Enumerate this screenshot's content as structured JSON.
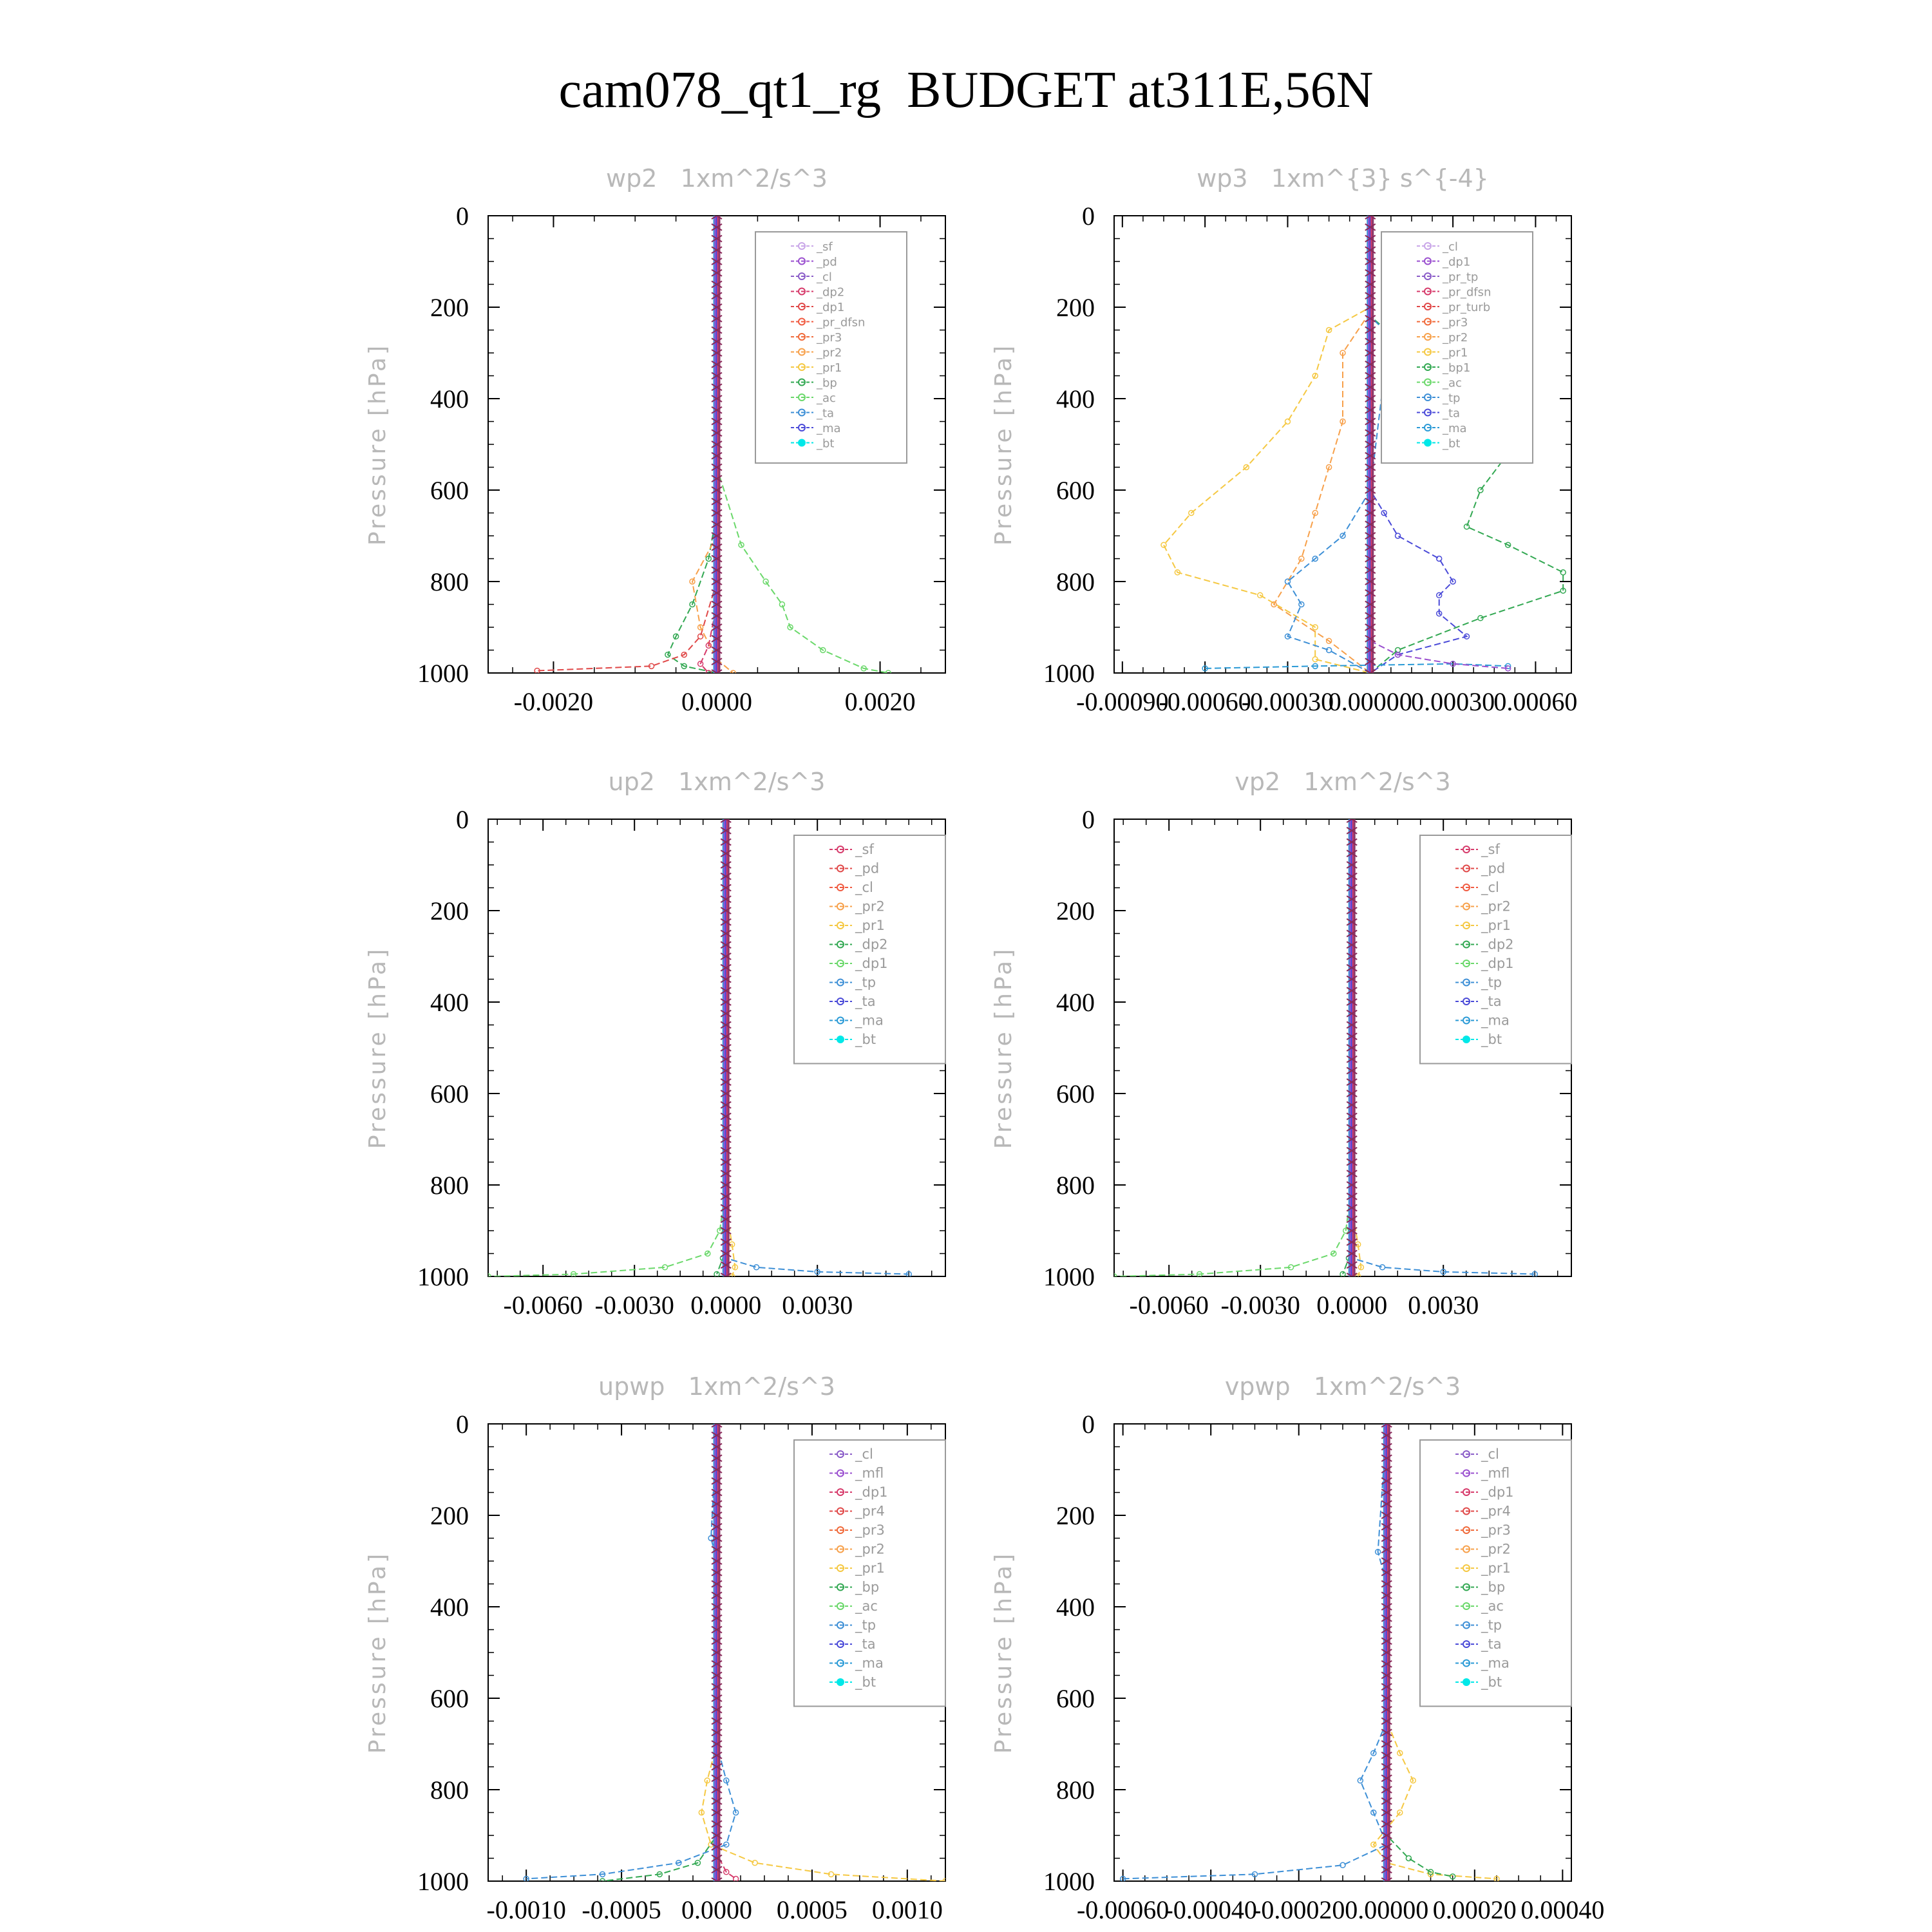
{
  "page_title": "cam078_qt1_rg  BUDGET at311E,56N",
  "chart_data": [
    {
      "type": "line",
      "title": "wp2   1xm^2/s^3",
      "ylabel": "Pressure [hPa]",
      "ylim": [
        0,
        1000
      ],
      "yticks": [
        "0",
        "200",
        "400",
        "600",
        "800",
        "1000"
      ],
      "xlim": [
        -0.0028,
        0.0028
      ],
      "xticks": [
        -0.002,
        0.0,
        0.002
      ],
      "xticklabels": [
        "-0.0020",
        "0.0000",
        "0.0020"
      ],
      "legend": [
        "_sf",
        "_pd",
        "_cl",
        "_dp2",
        "_dp1",
        "_pr_dfsn",
        "_pr3",
        "_pr2",
        "_pr1",
        "_bp",
        "_ac",
        "_ta",
        "_ma",
        "_bt"
      ],
      "series_colors": [
        "#c9a6e8",
        "#9a4fcf",
        "#8a5cc8",
        "#d63a6a",
        "#e04848",
        "#f05a40",
        "#f06a3a",
        "#f7a04a",
        "#f5c842",
        "#32a852",
        "#6ad86a",
        "#3d8fd6",
        "#4a4ad8",
        "#00e8e8"
      ],
      "series": [
        {
          "name": "_bp",
          "x": [
            0,
            0,
            -0.0001,
            -0.0003,
            -0.0005,
            -0.0006,
            -0.0004,
            0
          ],
          "y": [
            0,
            650,
            750,
            850,
            920,
            960,
            985,
            1000
          ]
        },
        {
          "name": "_ac",
          "x": [
            0,
            0,
            0.0003,
            0.0006,
            0.0008,
            0.0009,
            0.0013,
            0.0018,
            0.0021
          ],
          "y": [
            0,
            550,
            720,
            800,
            850,
            900,
            950,
            990,
            1000
          ]
        },
        {
          "name": "_dp1",
          "x": [
            0,
            0,
            -0.0002,
            -0.0004,
            -0.0008,
            -0.0022
          ],
          "y": [
            0,
            800,
            920,
            960,
            985,
            995
          ]
        },
        {
          "name": "_pr2",
          "x": [
            0,
            0,
            -0.0003,
            -0.0002,
            0,
            0.0002
          ],
          "y": [
            0,
            700,
            800,
            900,
            970,
            1000
          ]
        },
        {
          "name": "_dp2",
          "x": [
            0,
            0,
            -0.0001,
            -0.0002,
            -0.0001
          ],
          "y": [
            0,
            850,
            940,
            980,
            1000
          ]
        }
      ]
    },
    {
      "type": "line",
      "title": "wp3   1xm^{3} s^{-4}",
      "ylabel": "Pressure [hPa]",
      "ylim": [
        0,
        1000
      ],
      "yticks": [
        "0",
        "200",
        "400",
        "600",
        "800",
        "1000"
      ],
      "xlim": [
        -0.00093,
        0.00073
      ],
      "xticks": [
        -0.0009,
        -0.0006,
        -0.0003,
        0.0,
        0.0003,
        0.0006
      ],
      "xticklabels": [
        "-0.00090",
        "-0.00060",
        "-0.00030",
        "0.00000",
        "0.00030",
        "0.00060"
      ],
      "legend": [
        "_cl",
        "_dp1",
        "_pr_tp",
        "_pr_dfsn",
        "_pr_turb",
        "_pr3",
        "_pr2",
        "_pr1",
        "_bp1",
        "_ac",
        "_tp",
        "_ta",
        "_ma",
        "_bt"
      ],
      "series_colors": [
        "#c9a6e8",
        "#9a4fcf",
        "#8a5cc8",
        "#d63a6a",
        "#e04848",
        "#f06a3a",
        "#f7a04a",
        "#f5c842",
        "#32a852",
        "#6ad86a",
        "#3d8fd6",
        "#4a4ad8",
        "#2a9ad6",
        "#00e8e8"
      ],
      "series": [
        {
          "name": "_bp1",
          "x": [
            0,
            0,
            0.0001,
            0.0003,
            0.00045,
            0.0005,
            0.0004,
            0.00035,
            0.0005,
            0.0007,
            0.0007,
            0.0004,
            0.0001,
            0
          ],
          "y": [
            0,
            220,
            270,
            350,
            450,
            520,
            600,
            680,
            720,
            780,
            820,
            880,
            950,
            1000
          ]
        },
        {
          "name": "_pr1",
          "x": [
            0,
            0,
            -0.00015,
            -0.0002,
            -0.0003,
            -0.00045,
            -0.00065,
            -0.00075,
            -0.0007,
            -0.0004,
            -0.0002,
            -0.0002,
            0
          ],
          "y": [
            0,
            200,
            250,
            350,
            450,
            550,
            650,
            720,
            780,
            830,
            900,
            970,
            1000
          ]
        },
        {
          "name": "_pr2",
          "x": [
            0,
            0,
            -0.0001,
            -0.0001,
            -0.00015,
            -0.0002,
            -0.00025,
            -0.00035,
            -0.00015,
            0
          ],
          "y": [
            0,
            210,
            300,
            450,
            550,
            650,
            750,
            850,
            930,
            1000
          ]
        },
        {
          "name": "_ta",
          "x": [
            0,
            0,
            5e-05,
            0.0001,
            0.00025,
            0.0003,
            0.00025,
            0.00025,
            0.00035,
            0.0001,
            0
          ],
          "y": [
            0,
            600,
            650,
            700,
            750,
            800,
            830,
            870,
            920,
            960,
            1000
          ]
        },
        {
          "name": "_tp",
          "x": [
            0,
            0,
            0.0001,
            5e-05,
            0,
            -0.0001,
            -0.0002,
            -0.0003,
            -0.00025,
            -0.0003,
            -0.00015,
            0
          ],
          "y": [
            0,
            220,
            280,
            350,
            600,
            700,
            750,
            800,
            850,
            920,
            950,
            1000
          ]
        },
        {
          "name": "_ma",
          "x": [
            -0.0006,
            -0.0002,
            0.0003,
            0.0005
          ],
          "y": [
            990,
            985,
            980,
            985
          ]
        },
        {
          "name": "_dp1",
          "x": [
            0,
            0,
            0.0001,
            0.0003,
            0.0005
          ],
          "y": [
            0,
            930,
            960,
            980,
            990
          ]
        }
      ]
    },
    {
      "type": "line",
      "title": "up2   1xm^2/s^3",
      "ylabel": "Pressure [hPa]",
      "ylim": [
        0,
        1000
      ],
      "yticks": [
        "0",
        "200",
        "400",
        "600",
        "800",
        "1000"
      ],
      "xlim": [
        -0.0078,
        0.0072
      ],
      "xticks": [
        -0.006,
        -0.003,
        0.0,
        0.003
      ],
      "xticklabels": [
        "-0.0060",
        "-0.0030",
        "0.0000",
        "0.0030"
      ],
      "legend": [
        "_sf",
        "_pd",
        "_cl",
        "_pr2",
        "_pr1",
        "_dp2",
        "_dp1",
        "_tp",
        "_ta",
        "_ma",
        "_bt"
      ],
      "series_colors": [
        "#d63a6a",
        "#e04848",
        "#f05a40",
        "#f7a04a",
        "#f5c842",
        "#32a852",
        "#6ad86a",
        "#3d8fd6",
        "#4a4ad8",
        "#2a9ad6",
        "#00e8e8"
      ],
      "series": [
        {
          "name": "_dp1",
          "x": [
            0,
            0,
            -0.0002,
            -0.0006,
            -0.002,
            -0.005,
            -0.0078
          ],
          "y": [
            0,
            800,
            900,
            950,
            980,
            995,
            1000
          ]
        },
        {
          "name": "_tp",
          "x": [
            0,
            0,
            0.001,
            0.003,
            0.006
          ],
          "y": [
            0,
            960,
            980,
            990,
            995
          ]
        },
        {
          "name": "_pr1",
          "x": [
            0,
            0,
            0.0002,
            0.0003,
            0.0002
          ],
          "y": [
            0,
            850,
            930,
            980,
            1000
          ]
        },
        {
          "name": "_dp2",
          "x": [
            0,
            0,
            -0.0001,
            -0.0003
          ],
          "y": [
            0,
            900,
            960,
            995
          ]
        }
      ]
    },
    {
      "type": "line",
      "title": "vp2   1xm^2/s^3",
      "ylabel": "Pressure [hPa]",
      "ylim": [
        0,
        1000
      ],
      "yticks": [
        "0",
        "200",
        "400",
        "600",
        "800",
        "1000"
      ],
      "xlim": [
        -0.0078,
        0.0072
      ],
      "xticks": [
        -0.006,
        -0.003,
        0.0,
        0.003
      ],
      "xticklabels": [
        "-0.0060",
        "-0.0030",
        "0.0000",
        "0.0030"
      ],
      "legend": [
        "_sf",
        "_pd",
        "_cl",
        "_pr2",
        "_pr1",
        "_dp2",
        "_dp1",
        "_tp",
        "_ta",
        "_ma",
        "_bt"
      ],
      "series_colors": [
        "#d63a6a",
        "#e04848",
        "#f05a40",
        "#f7a04a",
        "#f5c842",
        "#32a852",
        "#6ad86a",
        "#3d8fd6",
        "#4a4ad8",
        "#2a9ad6",
        "#00e8e8"
      ],
      "series": [
        {
          "name": "_dp1",
          "x": [
            0,
            0,
            -0.0002,
            -0.0006,
            -0.002,
            -0.005,
            -0.0078
          ],
          "y": [
            0,
            800,
            900,
            950,
            980,
            995,
            1000
          ]
        },
        {
          "name": "_tp",
          "x": [
            0,
            0,
            0.001,
            0.003,
            0.006
          ],
          "y": [
            0,
            960,
            980,
            990,
            995
          ]
        },
        {
          "name": "_pr1",
          "x": [
            0,
            0,
            0.0002,
            0.0003,
            0.0002
          ],
          "y": [
            0,
            850,
            930,
            980,
            1000
          ]
        },
        {
          "name": "_dp2",
          "x": [
            0,
            0,
            -0.0001,
            -0.0003
          ],
          "y": [
            0,
            900,
            960,
            995
          ]
        }
      ]
    },
    {
      "type": "line",
      "title": "upwp   1xm^2/s^3",
      "ylabel": "Pressure [hPa]",
      "ylim": [
        0,
        1000
      ],
      "yticks": [
        "0",
        "200",
        "400",
        "600",
        "800",
        "1000"
      ],
      "xlim": [
        -0.0012,
        0.0012
      ],
      "xticks": [
        -0.001,
        -0.0005,
        0.0,
        0.0005,
        0.001
      ],
      "xticklabels": [
        "-0.0010",
        "-0.0005",
        "0.0000",
        "0.0005",
        "0.0010"
      ],
      "legend": [
        "_cl",
        "_mfl",
        "_dp1",
        "_pr4",
        "_pr3",
        "_pr2",
        "_pr1",
        "_bp",
        "_ac",
        "_tp",
        "_ta",
        "_ma",
        "_bt"
      ],
      "series_colors": [
        "#8a5cc8",
        "#9a4fcf",
        "#d63a6a",
        "#e04848",
        "#f06a3a",
        "#f7a04a",
        "#f5c842",
        "#32a852",
        "#6ad86a",
        "#3d8fd6",
        "#4a4ad8",
        "#2a9ad6",
        "#00e8e8"
      ],
      "series": [
        {
          "name": "_pr1",
          "x": [
            0,
            0,
            -5e-05,
            -8e-05,
            -3e-05,
            0.0002,
            0.0006,
            0.0012
          ],
          "y": [
            0,
            700,
            780,
            850,
            920,
            960,
            985,
            1000
          ]
        },
        {
          "name": "_tp",
          "x": [
            0,
            -3e-05,
            0,
            0,
            5e-05,
            0.0001,
            5e-05,
            -0.0002,
            -0.0006,
            -0.001
          ],
          "y": [
            0,
            250,
            300,
            700,
            780,
            850,
            920,
            960,
            985,
            995
          ]
        },
        {
          "name": "_bp",
          "x": [
            0,
            0,
            -0.0001,
            -0.0003,
            -0.0006
          ],
          "y": [
            0,
            900,
            960,
            985,
            1000
          ]
        },
        {
          "name": "_dp1",
          "x": [
            0,
            0,
            5e-05,
            0.0001
          ],
          "y": [
            0,
            940,
            980,
            995
          ]
        }
      ]
    },
    {
      "type": "line",
      "title": "vpwp   1xm^2/s^3",
      "ylabel": "Pressure [hPa]",
      "ylim": [
        0,
        1000
      ],
      "yticks": [
        "0",
        "200",
        "400",
        "600",
        "800",
        "1000"
      ],
      "xlim": [
        -0.00062,
        0.00042
      ],
      "xticks": [
        -0.0006,
        -0.0004,
        -0.0002,
        0.0,
        0.0002,
        0.0004
      ],
      "xticklabels": [
        "-0.00060",
        "-0.00040",
        "-0.00020",
        "0.00000",
        "0.00020",
        "0.00040"
      ],
      "legend": [
        "_cl",
        "_mfl",
        "_dp1",
        "_pr4",
        "_pr3",
        "_pr2",
        "_pr1",
        "_bp",
        "_ac",
        "_tp",
        "_ta",
        "_ma",
        "_bt"
      ],
      "series_colors": [
        "#8a5cc8",
        "#9a4fcf",
        "#d63a6a",
        "#e04848",
        "#f06a3a",
        "#f7a04a",
        "#f5c842",
        "#32a852",
        "#6ad86a",
        "#3d8fd6",
        "#4a4ad8",
        "#2a9ad6",
        "#00e8e8"
      ],
      "series": [
        {
          "name": "_tp",
          "x": [
            0,
            -2e-05,
            0,
            0,
            -3e-05,
            -6e-05,
            -3e-05,
            0,
            -0.0001,
            -0.0003,
            -0.0006
          ],
          "y": [
            0,
            280,
            350,
            650,
            720,
            780,
            850,
            920,
            965,
            985,
            995
          ]
        },
        {
          "name": "_pr1",
          "x": [
            0,
            0,
            3e-05,
            6e-05,
            3e-05,
            -3e-05,
            0,
            0.0001,
            0.00025
          ],
          "y": [
            0,
            650,
            720,
            780,
            850,
            920,
            960,
            985,
            995
          ]
        },
        {
          "name": "_bp",
          "x": [
            0,
            0,
            5e-05,
            0.0001,
            0.00015
          ],
          "y": [
            0,
            900,
            950,
            980,
            990
          ]
        }
      ]
    }
  ]
}
